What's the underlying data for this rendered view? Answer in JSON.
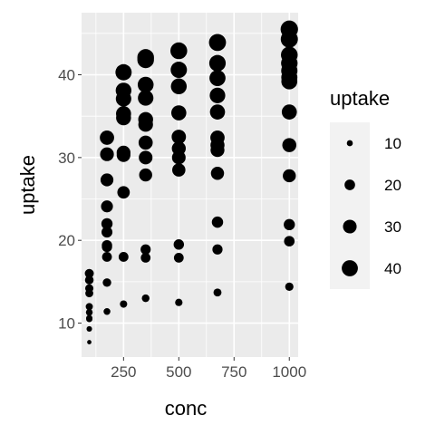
{
  "chart_data": {
    "type": "scatter",
    "xlabel": "conc",
    "ylabel": "uptake",
    "xlim": [
      60,
      1040
    ],
    "ylim": [
      5.9,
      47.5
    ],
    "x_ticks": [
      250,
      500,
      750,
      1000
    ],
    "y_ticks": [
      10,
      20,
      30,
      40
    ],
    "grid": true,
    "legend": {
      "title": "uptake",
      "placement": "right",
      "entries": [
        10,
        20,
        30,
        40
      ]
    },
    "size_scale": {
      "min": 7.7,
      "max": 45.5
    },
    "colors": {
      "point": "#000000",
      "panel": "#ebebeb",
      "grid": "#ffffff",
      "legend_key_bg": "#f2f2f2"
    },
    "points": [
      {
        "x": 95,
        "y": 16.0
      },
      {
        "x": 95,
        "y": 15.2
      },
      {
        "x": 95,
        "y": 14.2
      },
      {
        "x": 95,
        "y": 13.6
      },
      {
        "x": 95,
        "y": 12.0
      },
      {
        "x": 95,
        "y": 11.3
      },
      {
        "x": 95,
        "y": 10.6
      },
      {
        "x": 95,
        "y": 10.5
      },
      {
        "x": 95,
        "y": 9.3
      },
      {
        "x": 95,
        "y": 7.7
      },
      {
        "x": 175,
        "y": 32.4
      },
      {
        "x": 175,
        "y": 30.4
      },
      {
        "x": 175,
        "y": 27.3
      },
      {
        "x": 175,
        "y": 24.1
      },
      {
        "x": 175,
        "y": 22.0
      },
      {
        "x": 175,
        "y": 21.0
      },
      {
        "x": 175,
        "y": 19.4
      },
      {
        "x": 175,
        "y": 19.2
      },
      {
        "x": 175,
        "y": 18.0
      },
      {
        "x": 175,
        "y": 14.9
      },
      {
        "x": 175,
        "y": 11.4
      },
      {
        "x": 250,
        "y": 40.3
      },
      {
        "x": 250,
        "y": 38.1
      },
      {
        "x": 250,
        "y": 37.1
      },
      {
        "x": 250,
        "y": 35.3
      },
      {
        "x": 250,
        "y": 34.8
      },
      {
        "x": 250,
        "y": 30.6
      },
      {
        "x": 250,
        "y": 30.3
      },
      {
        "x": 250,
        "y": 25.8
      },
      {
        "x": 250,
        "y": 18.0
      },
      {
        "x": 250,
        "y": 12.3
      },
      {
        "x": 350,
        "y": 42.1
      },
      {
        "x": 350,
        "y": 41.8
      },
      {
        "x": 350,
        "y": 38.8
      },
      {
        "x": 350,
        "y": 37.2
      },
      {
        "x": 350,
        "y": 34.6
      },
      {
        "x": 350,
        "y": 34.0
      },
      {
        "x": 350,
        "y": 31.8
      },
      {
        "x": 350,
        "y": 30.0
      },
      {
        "x": 350,
        "y": 27.9
      },
      {
        "x": 350,
        "y": 18.9
      },
      {
        "x": 350,
        "y": 17.9
      },
      {
        "x": 350,
        "y": 13.0
      },
      {
        "x": 500,
        "y": 42.9
      },
      {
        "x": 500,
        "y": 40.6
      },
      {
        "x": 500,
        "y": 38.6
      },
      {
        "x": 500,
        "y": 35.4
      },
      {
        "x": 500,
        "y": 32.5
      },
      {
        "x": 500,
        "y": 31.1
      },
      {
        "x": 500,
        "y": 30.0
      },
      {
        "x": 500,
        "y": 28.5
      },
      {
        "x": 500,
        "y": 19.5
      },
      {
        "x": 500,
        "y": 17.9
      },
      {
        "x": 500,
        "y": 12.5
      },
      {
        "x": 675,
        "y": 43.9
      },
      {
        "x": 675,
        "y": 41.4
      },
      {
        "x": 675,
        "y": 39.6
      },
      {
        "x": 675,
        "y": 37.5
      },
      {
        "x": 675,
        "y": 35.5
      },
      {
        "x": 675,
        "y": 32.4
      },
      {
        "x": 675,
        "y": 31.5
      },
      {
        "x": 675,
        "y": 30.9
      },
      {
        "x": 675,
        "y": 28.1
      },
      {
        "x": 675,
        "y": 22.2
      },
      {
        "x": 675,
        "y": 18.9
      },
      {
        "x": 675,
        "y": 13.7
      },
      {
        "x": 1000,
        "y": 45.5
      },
      {
        "x": 1000,
        "y": 44.3
      },
      {
        "x": 1000,
        "y": 42.4
      },
      {
        "x": 1000,
        "y": 41.4
      },
      {
        "x": 1000,
        "y": 40.5
      },
      {
        "x": 1000,
        "y": 39.7
      },
      {
        "x": 1000,
        "y": 39.2
      },
      {
        "x": 1000,
        "y": 35.5
      },
      {
        "x": 1000,
        "y": 31.5
      },
      {
        "x": 1000,
        "y": 27.8
      },
      {
        "x": 1000,
        "y": 21.9
      },
      {
        "x": 1000,
        "y": 19.9
      },
      {
        "x": 1000,
        "y": 14.4
      }
    ]
  }
}
